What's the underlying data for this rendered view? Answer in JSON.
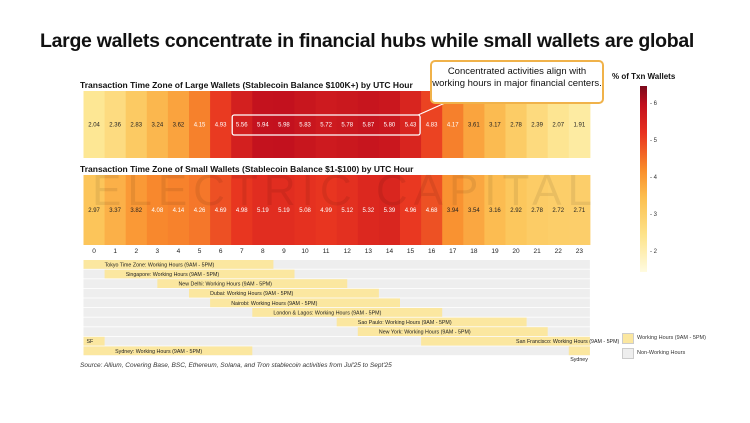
{
  "title": "Large wallets concentrate in financial hubs while small wallets are global",
  "watermark": "ELECTRIC CAPITAL",
  "callout": "Concentrated activities align with working hours in major financial centers.",
  "source": "Source: Allium, Covering Base, BSC, Ethereum, Solana, and Tron stablecoin activities from Jul'25 to Sept'25",
  "legend": {
    "colorbar_title": "% of Txn Wallets",
    "ticks": [
      "2",
      "3",
      "4",
      "5",
      "6"
    ],
    "working": "Working Hours (9AM - 5PM)",
    "nonworking": "Non-Working Hours",
    "working_color": "#fbe7a0",
    "nonworking_color": "#eeeeee"
  },
  "chart_data": [
    {
      "type": "heatmap",
      "title": "Transaction Time Zone of Large Wallets (Stablecoin Balance $100K+) by UTC Hour",
      "x": [
        0,
        1,
        2,
        3,
        4,
        5,
        6,
        7,
        8,
        9,
        10,
        11,
        12,
        13,
        14,
        15,
        16,
        17,
        18,
        19,
        20,
        21,
        22,
        23
      ],
      "values": [
        2.04,
        2.36,
        2.83,
        3.24,
        3.62,
        4.15,
        4.93,
        5.56,
        5.94,
        5.98,
        5.83,
        5.72,
        5.78,
        5.87,
        5.8,
        5.43,
        4.83,
        4.17,
        3.61,
        3.17,
        2.78,
        2.39,
        2.07,
        1.91
      ],
      "highlight_hours": [
        7,
        15
      ],
      "colorscale": "YlOrRd",
      "crange": [
        1.5,
        6.5
      ]
    },
    {
      "type": "heatmap",
      "title": "Transaction Time Zone of Small Wallets (Stablecoin Balance $1-$100) by UTC Hour",
      "x": [
        0,
        1,
        2,
        3,
        4,
        5,
        6,
        7,
        8,
        9,
        10,
        11,
        12,
        13,
        14,
        15,
        16,
        17,
        18,
        19,
        20,
        21,
        22,
        23
      ],
      "values": [
        2.97,
        3.37,
        3.82,
        4.08,
        4.14,
        4.26,
        4.69,
        4.98,
        5.19,
        5.19,
        5.08,
        4.99,
        5.12,
        5.32,
        5.39,
        4.96,
        4.68,
        3.94,
        3.54,
        3.16,
        2.92,
        2.78,
        2.72,
        2.71
      ],
      "colorscale": "YlOrRd",
      "crange": [
        1.5,
        6.5
      ]
    }
  ],
  "timezones": [
    {
      "label": "Tokyo Time Zone: Working Hours (9AM - 5PM)",
      "start_utc": 0,
      "end_utc": 8
    },
    {
      "label": "Singapore: Working Hours (9AM - 5PM)",
      "start_utc": 1,
      "end_utc": 9
    },
    {
      "label": "New Delhi: Working Hours (9AM - 5PM)",
      "start_utc": 3.5,
      "end_utc": 11.5
    },
    {
      "label": "Dubai: Working Hours (9AM - 5PM)",
      "start_utc": 5,
      "end_utc": 13
    },
    {
      "label": "Nairobi: Working Hours (9AM - 5PM)",
      "start_utc": 6,
      "end_utc": 14
    },
    {
      "label": "London & Lagos: Working Hours (9AM - 5PM)",
      "start_utc": 8,
      "end_utc": 16
    },
    {
      "label": "Sao Paulo: Working Hours (9AM - 5PM)",
      "start_utc": 12,
      "end_utc": 20
    },
    {
      "label": "New York: Working Hours (9AM - 5PM)",
      "start_utc": 13,
      "end_utc": 21
    },
    {
      "label": "San Francisco: Working Hours (9AM - 5PM)",
      "start_utc": 16,
      "end_utc": 24,
      "wrap_label": "SF"
    },
    {
      "label": "Sydney: Working Hours (9AM - 5PM)",
      "start_utc": 23,
      "end_utc": 31,
      "wrap_label": "Sydney"
    }
  ]
}
